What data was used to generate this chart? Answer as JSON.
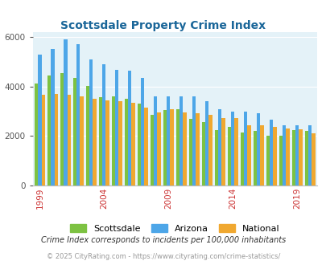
{
  "title": "Scottsdale Property Crime Index",
  "years": [
    1999,
    2000,
    2001,
    2002,
    2003,
    2004,
    2005,
    2006,
    2007,
    2008,
    2009,
    2010,
    2011,
    2012,
    2013,
    2014,
    2015,
    2016,
    2017,
    2018,
    2019,
    2020
  ],
  "scottsdale": [
    4100,
    4450,
    4550,
    4350,
    4020,
    3570,
    3580,
    3500,
    3300,
    2860,
    3050,
    3080,
    2680,
    2560,
    2240,
    2350,
    2150,
    2200,
    2010,
    2000,
    2220,
    2200
  ],
  "arizona": [
    5280,
    5500,
    5880,
    5700,
    5070,
    4890,
    4680,
    4640,
    4350,
    3580,
    3580,
    3580,
    3580,
    3400,
    3080,
    2990,
    2990,
    2900,
    2660,
    2420,
    2420,
    2420
  ],
  "national": [
    3660,
    3680,
    3660,
    3600,
    3490,
    3430,
    3410,
    3340,
    3150,
    2960,
    3080,
    2950,
    2900,
    2850,
    2730,
    2730,
    2440,
    2440,
    2360,
    2310,
    2260,
    2090
  ],
  "scottsdale_color": "#7dc242",
  "arizona_color": "#4da6e8",
  "national_color": "#f0a830",
  "plot_bg": "#e4f2f8",
  "ylim": [
    0,
    6200
  ],
  "yticks": [
    0,
    2000,
    4000,
    6000
  ],
  "xlabel_ticks": [
    1999,
    2004,
    2009,
    2014,
    2019
  ],
  "legend_labels": [
    "Scottsdale",
    "Arizona",
    "National"
  ],
  "footnote1": "Crime Index corresponds to incidents per 100,000 inhabitants",
  "footnote2": "© 2025 CityRating.com - https://www.cityrating.com/crime-statistics/",
  "title_color": "#1a6699",
  "footnote1_color": "#333333",
  "footnote2_color": "#999999"
}
